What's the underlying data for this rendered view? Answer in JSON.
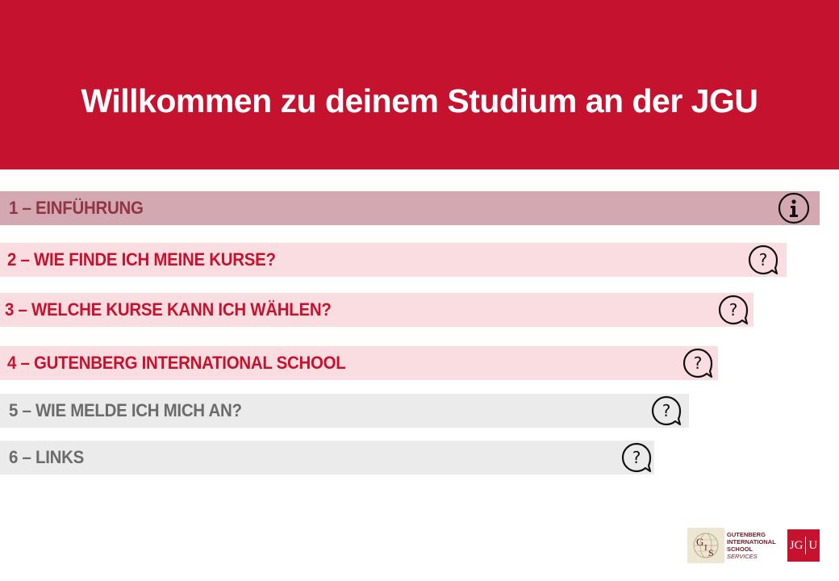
{
  "header": {
    "title": "Willkommen zu deinem Studium an der JGU"
  },
  "menu": {
    "items": [
      {
        "label": "1 – EINFÜHRUNG",
        "icon": "info-icon"
      },
      {
        "label": "2 – WIE FINDE ICH MEINE KURSE?",
        "icon": "question-bubble-icon"
      },
      {
        "label": "3 – WELCHE KURSE KANN ICH WÄHLEN?",
        "icon": "question-bubble-icon"
      },
      {
        "label": "4 – GUTENBERG INTERNATIONAL SCHOOL",
        "icon": "question-bubble-icon"
      },
      {
        "label": "5 – WIE MELDE ICH MICH AN?",
        "icon": "question-bubble-icon"
      },
      {
        "label": "6 – LINKS",
        "icon": "question-bubble-icon"
      }
    ]
  },
  "footer": {
    "gis_logo": {
      "mark": "GIS",
      "lines": [
        "GUTENBERG",
        "INTERNATIONAL",
        "SCHOOL",
        "SERVICES"
      ]
    },
    "jgu_logo": {
      "left": "JG",
      "right": "U"
    }
  },
  "colors": {
    "brand_red": "#c4122f",
    "active_bar": "#d3a8b1",
    "pink_bar": "#fadde1",
    "grey_bar": "#ebebeb",
    "active_text": "#8f3546",
    "pink_text": "#c4122f",
    "grey_text": "#6b6b6b"
  }
}
